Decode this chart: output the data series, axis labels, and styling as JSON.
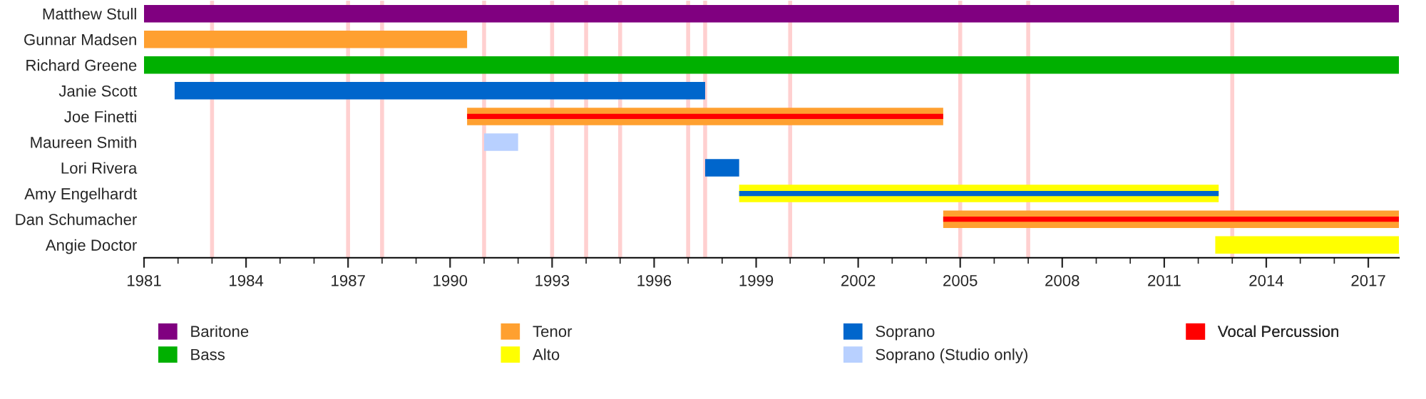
{
  "chart_data": {
    "type": "bar",
    "orientation": "horizontal",
    "categories": [
      "Matthew Stull",
      "Gunnar Madsen",
      "Richard Greene",
      "Janie Scott",
      "Joe Finetti",
      "Maureen Smith",
      "Lori Rivera",
      "Amy Engelhardt",
      "Dan Schumacher",
      "Angie Doctor"
    ],
    "series": [
      {
        "name": "Baritone",
        "color": "#800080",
        "base": [
          1981,
          null,
          null,
          null,
          null,
          null,
          null,
          null,
          null,
          null
        ],
        "values": [
          36.9,
          null,
          null,
          null,
          null,
          null,
          null,
          null,
          null,
          null
        ]
      },
      {
        "name": "Bass",
        "color": "#00b000",
        "base": [
          null,
          null,
          1981,
          null,
          null,
          null,
          null,
          null,
          null,
          null
        ],
        "values": [
          null,
          null,
          36.9,
          null,
          null,
          null,
          null,
          null,
          null,
          null
        ]
      },
      {
        "name": "Tenor",
        "color": "#ffa030",
        "base": [
          null,
          1981,
          null,
          null,
          1990.5,
          null,
          null,
          null,
          2004.5,
          null
        ],
        "values": [
          null,
          9.5,
          null,
          null,
          14,
          null,
          null,
          null,
          13.4,
          null
        ]
      },
      {
        "name": "Alto",
        "color": "#ffff00",
        "base": [
          null,
          null,
          null,
          null,
          null,
          null,
          null,
          1998.5,
          null,
          2012.5
        ],
        "values": [
          null,
          null,
          null,
          null,
          null,
          null,
          null,
          14.1,
          null,
          5.4
        ]
      },
      {
        "name": "Soprano",
        "color": "#0066cc",
        "base": [
          null,
          null,
          null,
          1981.9,
          null,
          null,
          1997.5,
          1998.5,
          null,
          null
        ],
        "values": [
          null,
          null,
          null,
          15.6,
          null,
          null,
          1,
          14.1,
          null,
          null
        ]
      },
      {
        "name": "Soprano (Studio only)",
        "color": "#b8d0ff",
        "base": [
          null,
          null,
          null,
          null,
          null,
          1991,
          null,
          null,
          null,
          null
        ],
        "values": [
          null,
          null,
          null,
          null,
          null,
          1,
          null,
          null,
          null,
          null
        ]
      },
      {
        "name": "Vocal Percussion",
        "color": "#ff0000",
        "base": [
          null,
          null,
          null,
          null,
          1990.5,
          null,
          null,
          null,
          2004.5,
          null
        ],
        "values": [
          null,
          null,
          null,
          null,
          14,
          null,
          null,
          null,
          13.4,
          null
        ]
      }
    ],
    "xlim": [
      1981,
      2017.9
    ],
    "xticks": [
      1981,
      {
        "value": 1982,
        "label": null
      },
      {
        "value": 1983,
        "label": null
      },
      1984,
      {
        "value": 1985,
        "label": null
      },
      {
        "value": 1986,
        "label": null
      },
      1987,
      {
        "value": 1988,
        "label": null
      },
      {
        "value": 1989,
        "label": null
      },
      1990,
      {
        "value": 1991,
        "label": null
      },
      {
        "value": 1992,
        "label": null
      },
      1993,
      {
        "value": 1994,
        "label": null
      },
      {
        "value": 1995,
        "label": null
      },
      1996,
      {
        "value": 1997,
        "label": null
      },
      {
        "value": 1998,
        "label": null
      },
      1999,
      {
        "value": 2000,
        "label": null
      },
      {
        "value": 2001,
        "label": null
      },
      2002,
      {
        "value": 2003,
        "label": null
      },
      {
        "value": 2004,
        "label": null
      },
      2005,
      {
        "value": 2006,
        "label": null
      },
      {
        "value": 2007,
        "label": null
      },
      2008,
      {
        "value": 2009,
        "label": null
      },
      {
        "value": 2010,
        "label": null
      },
      2011,
      {
        "value": 2012,
        "label": null
      },
      {
        "value": 2013,
        "label": null
      },
      2014,
      {
        "value": 2015,
        "label": null
      },
      {
        "value": 2016,
        "label": null
      },
      2017
    ],
    "ref_lines": [
      {
        "axis": "x",
        "value": 1983,
        "color": "#ffd0d0"
      },
      {
        "axis": "x",
        "value": 1987,
        "color": "#ffd0d0"
      },
      {
        "axis": "x",
        "value": 1988,
        "color": "#ffd0d0"
      },
      {
        "axis": "x",
        "value": 1991,
        "color": "#ffd0d0"
      },
      {
        "axis": "x",
        "value": 1993,
        "color": "#ffd0d0"
      },
      {
        "axis": "x",
        "value": 1994,
        "color": "#ffd0d0"
      },
      {
        "axis": "x",
        "value": 1995,
        "color": "#ffd0d0"
      },
      {
        "axis": "x",
        "value": 1997,
        "color": "#ffd0d0"
      },
      {
        "axis": "x",
        "value": 1997.5,
        "color": "#ffd0d0"
      },
      {
        "axis": "x",
        "value": 2000,
        "color": "#ffd0d0"
      },
      {
        "axis": "x",
        "value": 2005,
        "color": "#ffd0d0"
      },
      {
        "axis": "x",
        "value": 2007,
        "color": "#ffd0d0"
      },
      {
        "axis": "x",
        "value": 2013,
        "color": "#ffd0d0"
      }
    ],
    "grid": false,
    "legend": "bottom"
  }
}
